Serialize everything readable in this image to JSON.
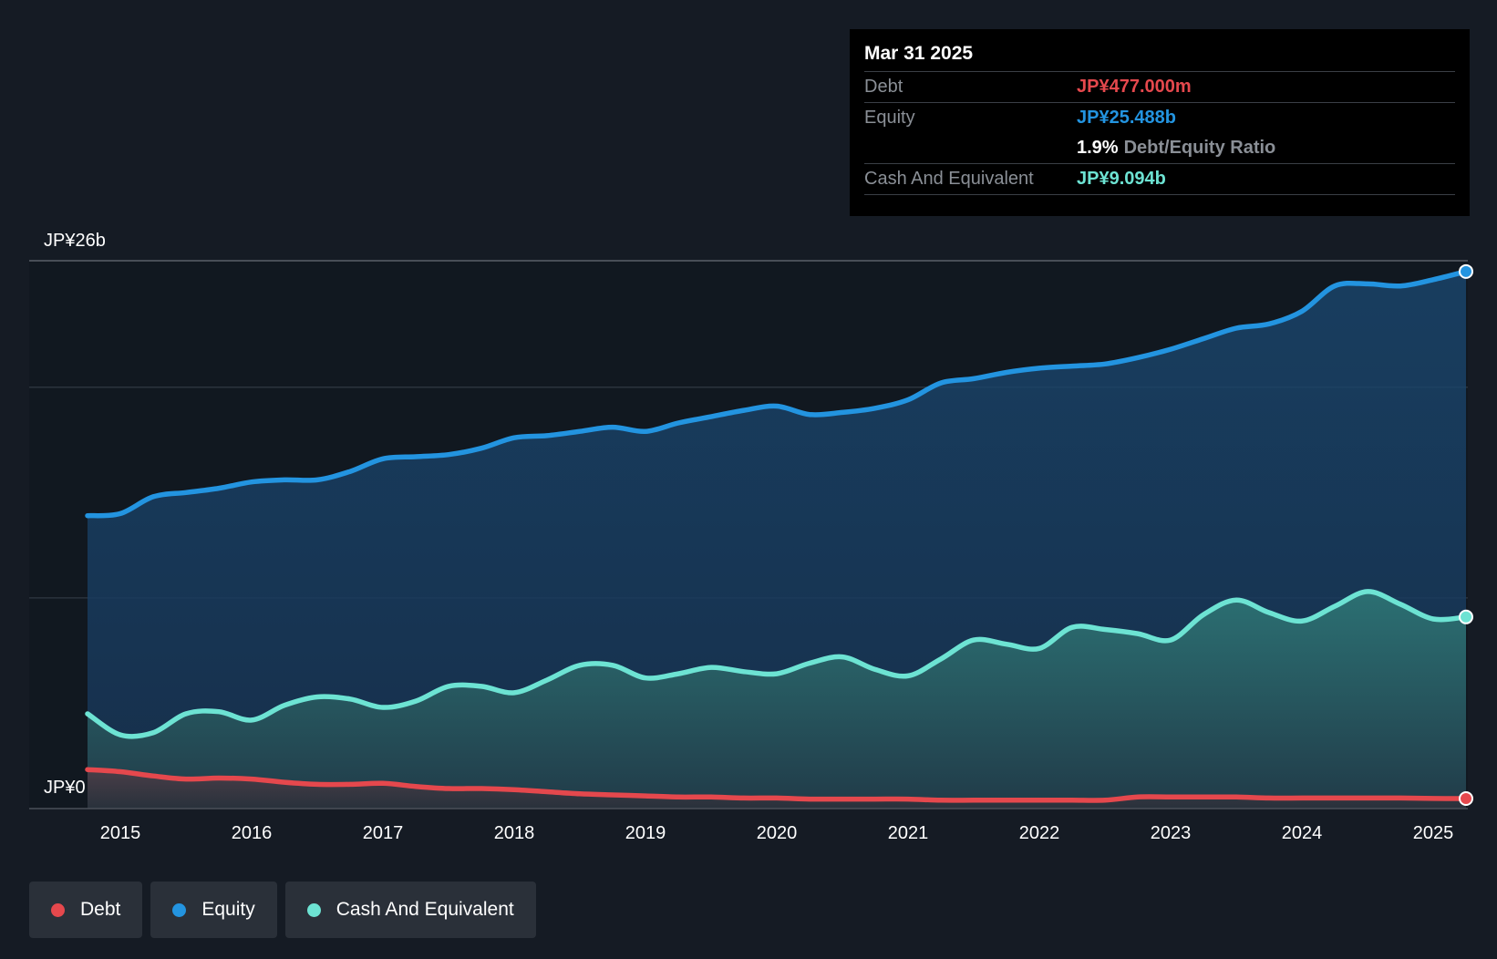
{
  "tooltip": {
    "date": "Mar 31 2025",
    "debt_label": "Debt",
    "debt_value": "JP¥477.000m",
    "equity_label": "Equity",
    "equity_value": "JP¥25.488b",
    "ratio_value": "1.9%",
    "ratio_label": "Debt/Equity Ratio",
    "cash_label": "Cash And Equivalent",
    "cash_value": "JP¥9.094b"
  },
  "legend": [
    {
      "label": "Debt",
      "color": "#e5484d"
    },
    {
      "label": "Equity",
      "color": "#2394e0"
    },
    {
      "label": "Cash And Equivalent",
      "color": "#6de3d3"
    }
  ],
  "colors": {
    "debt": "#e5484d",
    "equity": "#2394e0",
    "cash": "#6de3d3",
    "background": "#151b24"
  },
  "chart_data": {
    "type": "area",
    "title": "",
    "y_max_label": "JP¥26b",
    "y_min_label": "JP¥0",
    "ylim": [
      0,
      26
    ],
    "xlim": [
      2014.75,
      2025.25
    ],
    "x_ticks": [
      2015,
      2016,
      2017,
      2018,
      2019,
      2020,
      2021,
      2022,
      2023,
      2024,
      2025
    ],
    "x_tick_labels": [
      "2015",
      "2016",
      "2017",
      "2018",
      "2019",
      "2020",
      "2021",
      "2022",
      "2023",
      "2024",
      "2025"
    ],
    "series": [
      {
        "name": "Equity",
        "x": [
          2014.75,
          2015,
          2015.25,
          2015.5,
          2015.75,
          2016,
          2016.25,
          2016.5,
          2016.75,
          2017,
          2017.25,
          2017.5,
          2017.75,
          2018,
          2018.25,
          2018.5,
          2018.75,
          2019,
          2019.25,
          2019.5,
          2019.75,
          2020,
          2020.25,
          2020.5,
          2020.75,
          2021,
          2021.25,
          2021.5,
          2021.75,
          2022,
          2022.25,
          2022.5,
          2022.75,
          2023,
          2023.25,
          2023.5,
          2023.75,
          2024,
          2024.25,
          2024.5,
          2024.75,
          2025,
          2025.25
        ],
        "values": [
          13.9,
          14.0,
          14.8,
          15.0,
          15.2,
          15.5,
          15.6,
          15.6,
          16.0,
          16.6,
          16.7,
          16.8,
          17.1,
          17.6,
          17.7,
          17.9,
          18.1,
          17.9,
          18.3,
          18.6,
          18.9,
          19.1,
          18.7,
          18.8,
          19.0,
          19.4,
          20.2,
          20.4,
          20.7,
          20.9,
          21.0,
          21.1,
          21.4,
          21.8,
          22.3,
          22.8,
          23.0,
          23.6,
          24.8,
          24.9,
          24.8,
          25.1,
          25.488
        ]
      },
      {
        "name": "Cash And Equivalent",
        "x": [
          2014.75,
          2015,
          2015.25,
          2015.5,
          2015.75,
          2016,
          2016.25,
          2016.5,
          2016.75,
          2017,
          2017.25,
          2017.5,
          2017.75,
          2018,
          2018.25,
          2018.5,
          2018.75,
          2019,
          2019.25,
          2019.5,
          2019.75,
          2020,
          2020.25,
          2020.5,
          2020.75,
          2021,
          2021.25,
          2021.5,
          2021.75,
          2022,
          2022.25,
          2022.5,
          2022.75,
          2023,
          2023.25,
          2023.5,
          2023.75,
          2024,
          2024.25,
          2024.5,
          2024.75,
          2025,
          2025.25
        ],
        "values": [
          4.5,
          3.5,
          3.6,
          4.5,
          4.6,
          4.2,
          4.9,
          5.3,
          5.2,
          4.8,
          5.1,
          5.8,
          5.8,
          5.5,
          6.1,
          6.8,
          6.8,
          6.2,
          6.4,
          6.7,
          6.5,
          6.4,
          6.9,
          7.2,
          6.6,
          6.3,
          7.1,
          8.0,
          7.8,
          7.6,
          8.6,
          8.5,
          8.3,
          8.0,
          9.2,
          9.9,
          9.3,
          8.9,
          9.6,
          10.3,
          9.7,
          9.0,
          9.094
        ]
      },
      {
        "name": "Debt",
        "x": [
          2014.75,
          2015,
          2015.25,
          2015.5,
          2015.75,
          2016,
          2016.25,
          2016.5,
          2016.75,
          2017,
          2017.25,
          2017.5,
          2017.75,
          2018,
          2018.25,
          2018.5,
          2018.75,
          2019,
          2019.25,
          2019.5,
          2019.75,
          2020,
          2020.25,
          2020.5,
          2020.75,
          2021,
          2021.25,
          2021.5,
          2021.75,
          2022,
          2022.25,
          2022.5,
          2022.75,
          2023,
          2023.25,
          2023.5,
          2023.75,
          2024,
          2024.25,
          2024.5,
          2024.75,
          2025,
          2025.25
        ],
        "values": [
          1.85,
          1.75,
          1.55,
          1.4,
          1.45,
          1.4,
          1.25,
          1.15,
          1.15,
          1.2,
          1.05,
          0.95,
          0.95,
          0.9,
          0.8,
          0.7,
          0.65,
          0.6,
          0.55,
          0.55,
          0.5,
          0.5,
          0.45,
          0.45,
          0.45,
          0.45,
          0.4,
          0.4,
          0.4,
          0.4,
          0.4,
          0.4,
          0.55,
          0.55,
          0.55,
          0.55,
          0.5,
          0.5,
          0.5,
          0.5,
          0.5,
          0.48,
          0.477
        ]
      }
    ]
  }
}
